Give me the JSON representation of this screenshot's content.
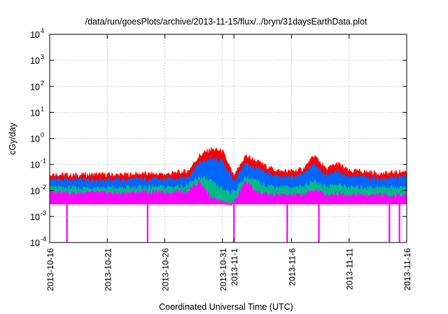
{
  "chart_data": {
    "type": "line",
    "title": "/data/run/goesPlots/archive/2013-11-15/flux/../bryn/31daysEarthData.plot",
    "xlabel": "Coordinated Universal Time (UTC)",
    "ylabel": "cGy/day",
    "yscale": "log",
    "ylim": [
      0.0001,
      10000
    ],
    "y_ticks": [
      {
        "value": 0.0001,
        "mantissa": "10",
        "exp": "-4"
      },
      {
        "value": 0.001,
        "mantissa": "10",
        "exp": "-3"
      },
      {
        "value": 0.01,
        "mantissa": "10",
        "exp": "-2"
      },
      {
        "value": 0.1,
        "mantissa": "10",
        "exp": "-1"
      },
      {
        "value": 1,
        "mantissa": "10",
        "exp": "0"
      },
      {
        "value": 10,
        "mantissa": "10",
        "exp": "1"
      },
      {
        "value": 100,
        "mantissa": "10",
        "exp": "2"
      },
      {
        "value": 1000,
        "mantissa": "10",
        "exp": "3"
      },
      {
        "value": 10000,
        "mantissa": "10",
        "exp": "4"
      }
    ],
    "xlim": [
      "2013-10-16",
      "2013-11-16"
    ],
    "x_ticks": [
      {
        "value": "2013-10-16",
        "label": "2013-10-16"
      },
      {
        "value": "2013-10-21",
        "label": "2013-10-21"
      },
      {
        "value": "2013-10-26",
        "label": "2013-10-26"
      },
      {
        "value": "2013-10-31",
        "label": "2013-10-31"
      },
      {
        "value": "2013-11-01",
        "label": "2013-11-1"
      },
      {
        "value": "2013-11-06",
        "label": "2013-11-6"
      },
      {
        "value": "2013-11-11",
        "label": "2013-11-11"
      },
      {
        "value": "2013-11-16",
        "label": "2013-11-16"
      }
    ],
    "grid": true,
    "series": [
      {
        "color": "#ff0000",
        "x": [
          "2013-10-16",
          "2013-10-18",
          "2013-10-20",
          "2013-10-22",
          "2013-10-24",
          "2013-10-26",
          "2013-10-28",
          "2013-10-29",
          "2013-10-30",
          "2013-10-31",
          "2013-11-01",
          "2013-11-02",
          "2013-11-03",
          "2013-11-04",
          "2013-11-05",
          "2013-11-06",
          "2013-11-07",
          "2013-11-08",
          "2013-11-09",
          "2013-11-10",
          "2013-11-11",
          "2013-11-12",
          "2013-11-14",
          "2013-11-16"
        ],
        "y": [
          0.04,
          0.035,
          0.038,
          0.036,
          0.04,
          0.038,
          0.05,
          0.2,
          0.35,
          0.3,
          0.03,
          0.2,
          0.12,
          0.07,
          0.05,
          0.05,
          0.06,
          0.2,
          0.06,
          0.1,
          0.05,
          0.05,
          0.04,
          0.05
        ]
      },
      {
        "color": "#0066ff",
        "x": [
          "2013-10-16",
          "2013-10-18",
          "2013-10-20",
          "2013-10-22",
          "2013-10-24",
          "2013-10-26",
          "2013-10-28",
          "2013-10-29",
          "2013-10-30",
          "2013-10-31",
          "2013-11-01",
          "2013-11-02",
          "2013-11-03",
          "2013-11-04",
          "2013-11-05",
          "2013-11-06",
          "2013-11-07",
          "2013-11-08",
          "2013-11-09",
          "2013-11-10",
          "2013-11-11",
          "2013-11-12",
          "2013-11-14",
          "2013-11-16"
        ],
        "y": [
          0.025,
          0.022,
          0.024,
          0.023,
          0.025,
          0.024,
          0.03,
          0.1,
          0.15,
          0.12,
          0.02,
          0.1,
          0.06,
          0.04,
          0.03,
          0.03,
          0.035,
          0.1,
          0.035,
          0.05,
          0.03,
          0.03,
          0.025,
          0.03
        ]
      },
      {
        "color": "#00bb88",
        "x": [
          "2013-10-16",
          "2013-10-18",
          "2013-10-20",
          "2013-10-22",
          "2013-10-24",
          "2013-10-26",
          "2013-10-28",
          "2013-10-29",
          "2013-10-30",
          "2013-10-31",
          "2013-11-01",
          "2013-11-02",
          "2013-11-03",
          "2013-11-04",
          "2013-11-05",
          "2013-11-06",
          "2013-11-07",
          "2013-11-08",
          "2013-11-09",
          "2013-11-10",
          "2013-11-11",
          "2013-11-12",
          "2013-11-14",
          "2013-11-16"
        ],
        "y": [
          0.012,
          0.011,
          0.012,
          0.011,
          0.012,
          0.012,
          0.014,
          0.03,
          0.02,
          0.01,
          0.008,
          0.03,
          0.02,
          0.014,
          0.012,
          0.012,
          0.013,
          0.02,
          0.013,
          0.015,
          0.012,
          0.012,
          0.012,
          0.012
        ]
      },
      {
        "color": "#ff00ff",
        "x": [
          "2013-10-16",
          "2013-10-18",
          "2013-10-20",
          "2013-10-22",
          "2013-10-24",
          "2013-10-26",
          "2013-10-28",
          "2013-10-29",
          "2013-10-30",
          "2013-10-31",
          "2013-11-01",
          "2013-11-02",
          "2013-11-03",
          "2013-11-04",
          "2013-11-05",
          "2013-11-06",
          "2013-11-07",
          "2013-11-08",
          "2013-11-09",
          "2013-11-10",
          "2013-11-11",
          "2013-11-12",
          "2013-11-14",
          "2013-11-16"
        ],
        "y": [
          0.008,
          0.007,
          0.0075,
          0.007,
          0.008,
          0.0075,
          0.009,
          0.02,
          0.005,
          0.003,
          0.003,
          0.02,
          0.008,
          0.006,
          0.006,
          0.006,
          0.006,
          0.01,
          0.006,
          0.007,
          0.006,
          0.006,
          0.006,
          0.006
        ]
      }
    ],
    "magenta_floor": 0.003,
    "dropouts": [
      "2013-10-17T12:00",
      "2013-10-24T12:00",
      "2013-11-01T00:00",
      "2013-11-05T15:00",
      "2013-11-08T09:00",
      "2013-11-14T12:00",
      "2013-11-15T09:00"
    ]
  }
}
